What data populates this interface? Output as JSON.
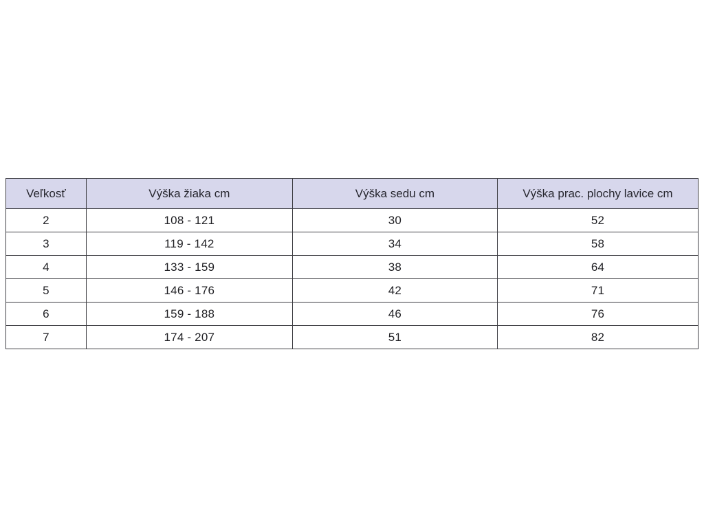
{
  "page": {
    "background_color": "#ffffff"
  },
  "table": {
    "header_bg_color": "#d7d7ec",
    "border_color": "#3d3d42",
    "text_color": "#1f1f23",
    "columns": [
      "Veľkosť",
      "Výška žiaka cm",
      "Výška sedu cm",
      "Výška prac. plochy lavice cm"
    ],
    "rows": [
      {
        "cells": [
          "2",
          "108 - 121",
          "30",
          "52"
        ]
      },
      {
        "cells": [
          "3",
          "119 - 142",
          "34",
          "58"
        ]
      },
      {
        "cells": [
          "4",
          "133 - 159",
          "38",
          "64"
        ]
      },
      {
        "cells": [
          "5",
          "146 - 176",
          "42",
          "71"
        ]
      },
      {
        "cells": [
          "6",
          "159 - 188",
          "46",
          "76"
        ]
      },
      {
        "cells": [
          "7",
          "174 - 207",
          "51",
          "82"
        ]
      }
    ]
  }
}
